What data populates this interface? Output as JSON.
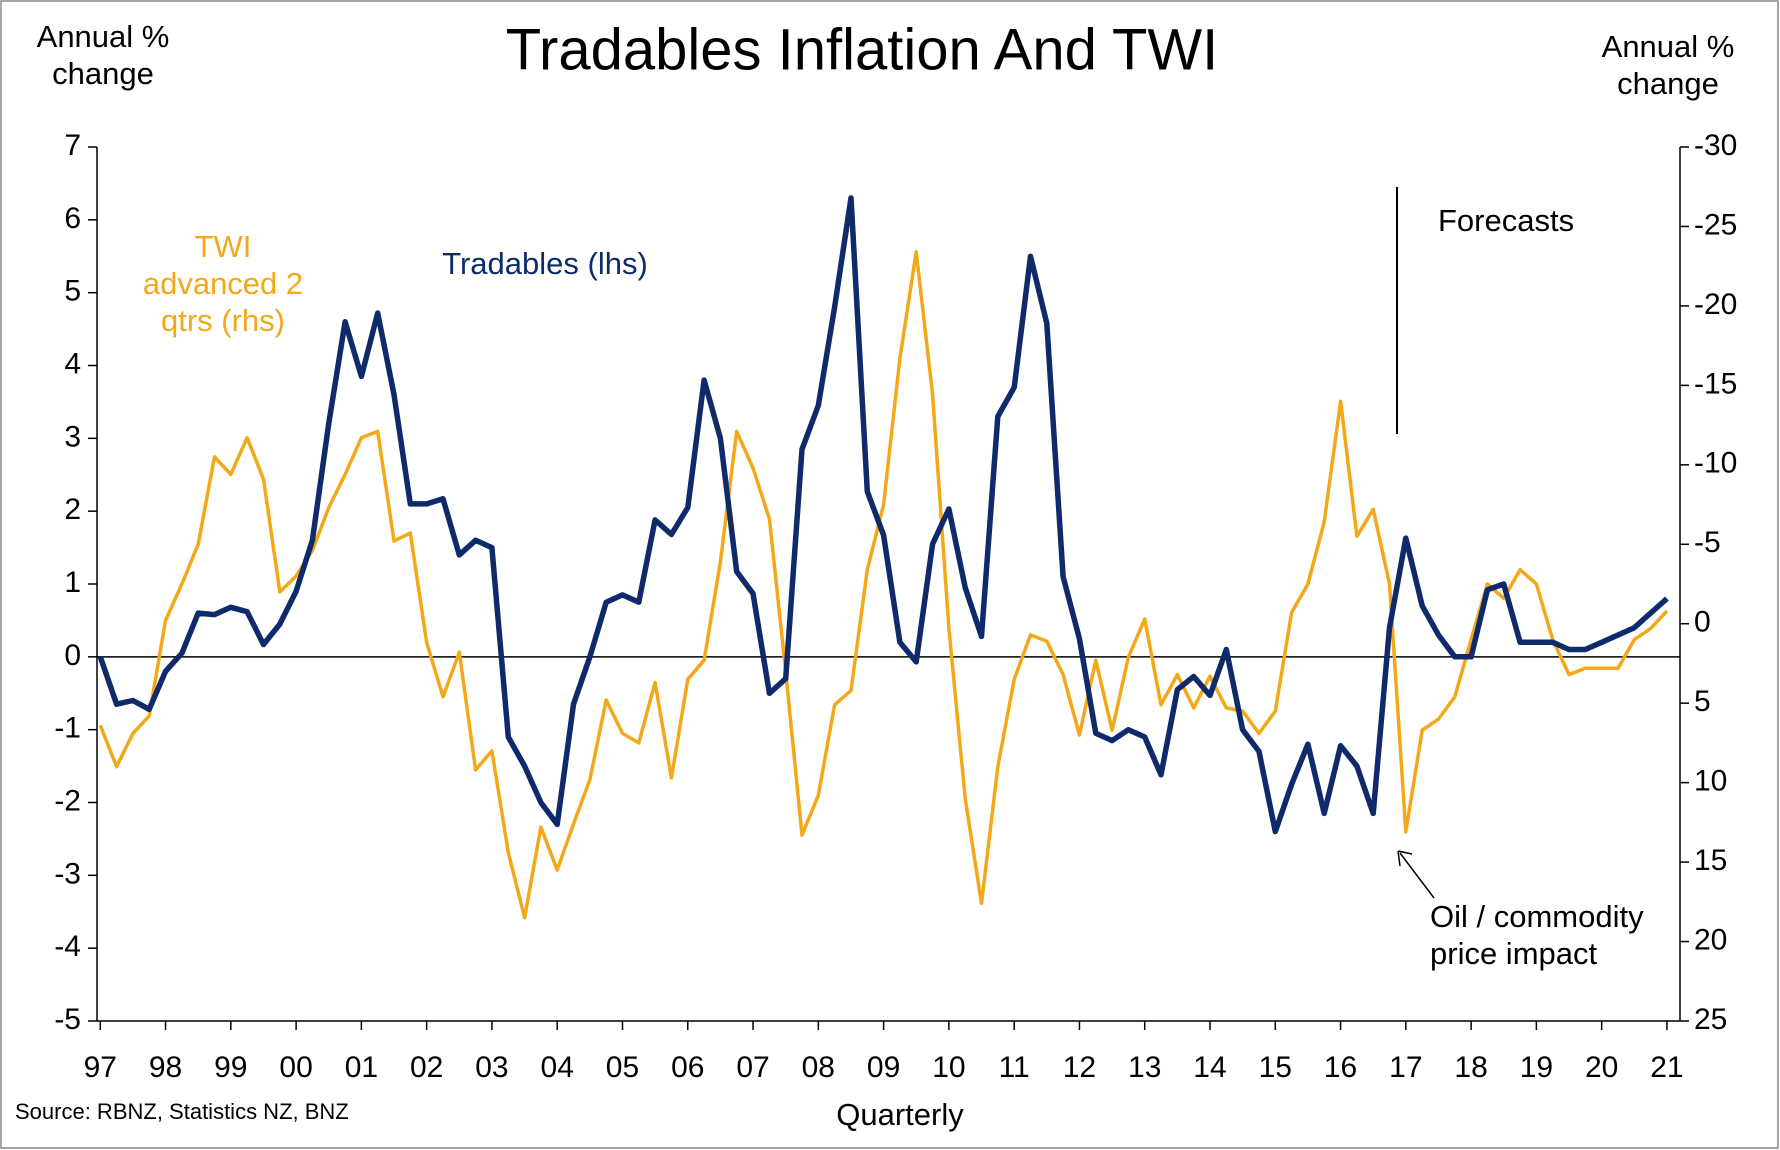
{
  "chart_data": {
    "type": "line",
    "title": "Tradables Inflation And TWI",
    "y_label": "Annual % change",
    "y2_label": "Annual % change",
    "x_label": "Quarterly",
    "source": "Source: RBNZ, Statistics NZ, BNZ",
    "annotations": [
      "Forecasts",
      "Oil / commodity price impact"
    ],
    "x": [
      1997,
      1997.25,
      1997.5,
      1997.75,
      1998,
      1998.25,
      1998.5,
      1998.75,
      1999,
      1999.25,
      1999.5,
      1999.75,
      2000,
      2000.25,
      2000.5,
      2000.75,
      2001,
      2001.25,
      2001.5,
      2001.75,
      2002,
      2002.25,
      2002.5,
      2002.75,
      2003,
      2003.25,
      2003.5,
      2003.75,
      2004,
      2004.25,
      2004.5,
      2004.75,
      2005,
      2005.25,
      2005.5,
      2005.75,
      2006,
      2006.25,
      2006.5,
      2006.75,
      2007,
      2007.25,
      2007.5,
      2007.75,
      2008,
      2008.25,
      2008.5,
      2008.75,
      2009,
      2009.25,
      2009.5,
      2009.75,
      2010,
      2010.25,
      2010.5,
      2010.75,
      2011,
      2011.25,
      2011.5,
      2011.75,
      2012,
      2012.25,
      2012.5,
      2012.75,
      2013,
      2013.25,
      2013.5,
      2013.75,
      2014,
      2014.25,
      2014.5,
      2014.75,
      2015,
      2015.25,
      2015.5,
      2015.75,
      2016,
      2016.25,
      2016.5,
      2016.75,
      2017,
      2017.25,
      2017.5,
      2017.75,
      2018,
      2018.25,
      2018.5,
      2018.75,
      2019,
      2019.25,
      2019.5,
      2019.75,
      2020,
      2020.25,
      2020.5,
      2020.75,
      2021
    ],
    "series": [
      {
        "name": "Tradables (lhs)",
        "color": "#0e2a6b",
        "axis": "y",
        "values": [
          0,
          -0.65,
          -0.6,
          -0.72,
          -0.2,
          0.05,
          0.6,
          0.58,
          0.68,
          0.62,
          0.17,
          0.45,
          0.9,
          1.6,
          3.2,
          4.6,
          3.85,
          4.72,
          3.6,
          2.1,
          2.1,
          2.17,
          1.4,
          1.6,
          1.5,
          -1.1,
          -1.5,
          -2.0,
          -2.3,
          -0.65,
          0,
          0.75,
          0.85,
          0.75,
          1.88,
          1.68,
          2.05,
          3.8,
          3.0,
          1.17,
          0.87,
          -0.5,
          -0.3,
          2.85,
          3.45,
          4.8,
          6.3,
          2.27,
          1.67,
          0.2,
          -0.07,
          1.55,
          2.03,
          0.95,
          0.28,
          3.3,
          3.7,
          5.5,
          4.58,
          1.1,
          0.25,
          -1.05,
          -1.15,
          -1.0,
          -1.1,
          -1.62,
          -0.45,
          -0.27,
          -0.53,
          0.1,
          -1.0,
          -1.3,
          -2.4,
          -1.75,
          -1.2,
          -2.15,
          -1.22,
          -1.5,
          -2.15,
          0.4,
          1.63,
          0.7,
          0.3,
          0,
          0,
          0.92,
          1.0,
          0.2,
          0.2,
          0.2,
          0.1,
          0.1,
          0.2,
          0.3,
          0.4,
          0.6,
          0.8
        ]
      },
      {
        "name": "TWI advanced 2 qtrs (rhs)",
        "color": "#f2a818",
        "axis": "y2",
        "values": [
          6.4,
          9,
          6.9,
          5.8,
          -0.2,
          -2.5,
          -5,
          -10.5,
          -9.4,
          -11.7,
          -9.1,
          -2,
          -3,
          -4.6,
          -7.3,
          -9.4,
          -11.7,
          -12.1,
          -5.2,
          -5.7,
          1.2,
          4.6,
          1.8,
          9.2,
          8,
          14.4,
          18.5,
          12.8,
          15.5,
          12.6,
          9.8,
          4.8,
          6.9,
          7.5,
          3.7,
          9.7,
          3.5,
          2.3,
          -3.9,
          -12.1,
          -9.8,
          -6.6,
          3,
          13.3,
          10.8,
          5.1,
          4.2,
          -3.4,
          -7.5,
          -16.7,
          -23.4,
          -14.4,
          0.3,
          11,
          17.6,
          9,
          3.5,
          0.7,
          1.1,
          3.2,
          7,
          2.3,
          6.7,
          2.1,
          -0.3,
          5.1,
          3.2,
          5.3,
          3.3,
          5.3,
          5.5,
          6.9,
          5.5,
          -0.7,
          -2.5,
          -6.4,
          -14,
          -5.5,
          -7.2,
          -2.5,
          13.1,
          6.7,
          6,
          4.6,
          1,
          -2.5,
          -1.6,
          -3.4,
          -2.5,
          1,
          3.2,
          2.8,
          2.8,
          2.8,
          1,
          0.3,
          -0.8
        ]
      }
    ],
    "xlim": [
      1996.95,
      2021.2
    ],
    "xticks": [
      {
        "value": 1997,
        "label": "97"
      },
      {
        "value": 1998,
        "label": "98"
      },
      {
        "value": 1999,
        "label": "99"
      },
      {
        "value": 2000,
        "label": "00"
      },
      {
        "value": 2001,
        "label": "01"
      },
      {
        "value": 2002,
        "label": "02"
      },
      {
        "value": 2003,
        "label": "03"
      },
      {
        "value": 2004,
        "label": "04"
      },
      {
        "value": 2005,
        "label": "05"
      },
      {
        "value": 2006,
        "label": "06"
      },
      {
        "value": 2007,
        "label": "07"
      },
      {
        "value": 2008,
        "label": "08"
      },
      {
        "value": 2009,
        "label": "09"
      },
      {
        "value": 2010,
        "label": "10"
      },
      {
        "value": 2011,
        "label": "11"
      },
      {
        "value": 2012,
        "label": "12"
      },
      {
        "value": 2013,
        "label": "13"
      },
      {
        "value": 2014,
        "label": "14"
      },
      {
        "value": 2015,
        "label": "15"
      },
      {
        "value": 2016,
        "label": "16"
      },
      {
        "value": 2017,
        "label": "17"
      },
      {
        "value": 2018,
        "label": "18"
      },
      {
        "value": 2019,
        "label": "19"
      },
      {
        "value": 2020,
        "label": "20"
      },
      {
        "value": 2021,
        "label": "21"
      }
    ],
    "ylim": [
      -5,
      7
    ],
    "yticks": [
      -5,
      -4,
      -3,
      -2,
      -1,
      0,
      1,
      2,
      3,
      4,
      5,
      6,
      7
    ],
    "y2lim": [
      -30,
      25
    ],
    "y2ticks": [
      -30,
      -25,
      -20,
      -15,
      -10,
      -5,
      0,
      5,
      10,
      15,
      20,
      25
    ],
    "y2_inverted": true,
    "grid": false
  }
}
